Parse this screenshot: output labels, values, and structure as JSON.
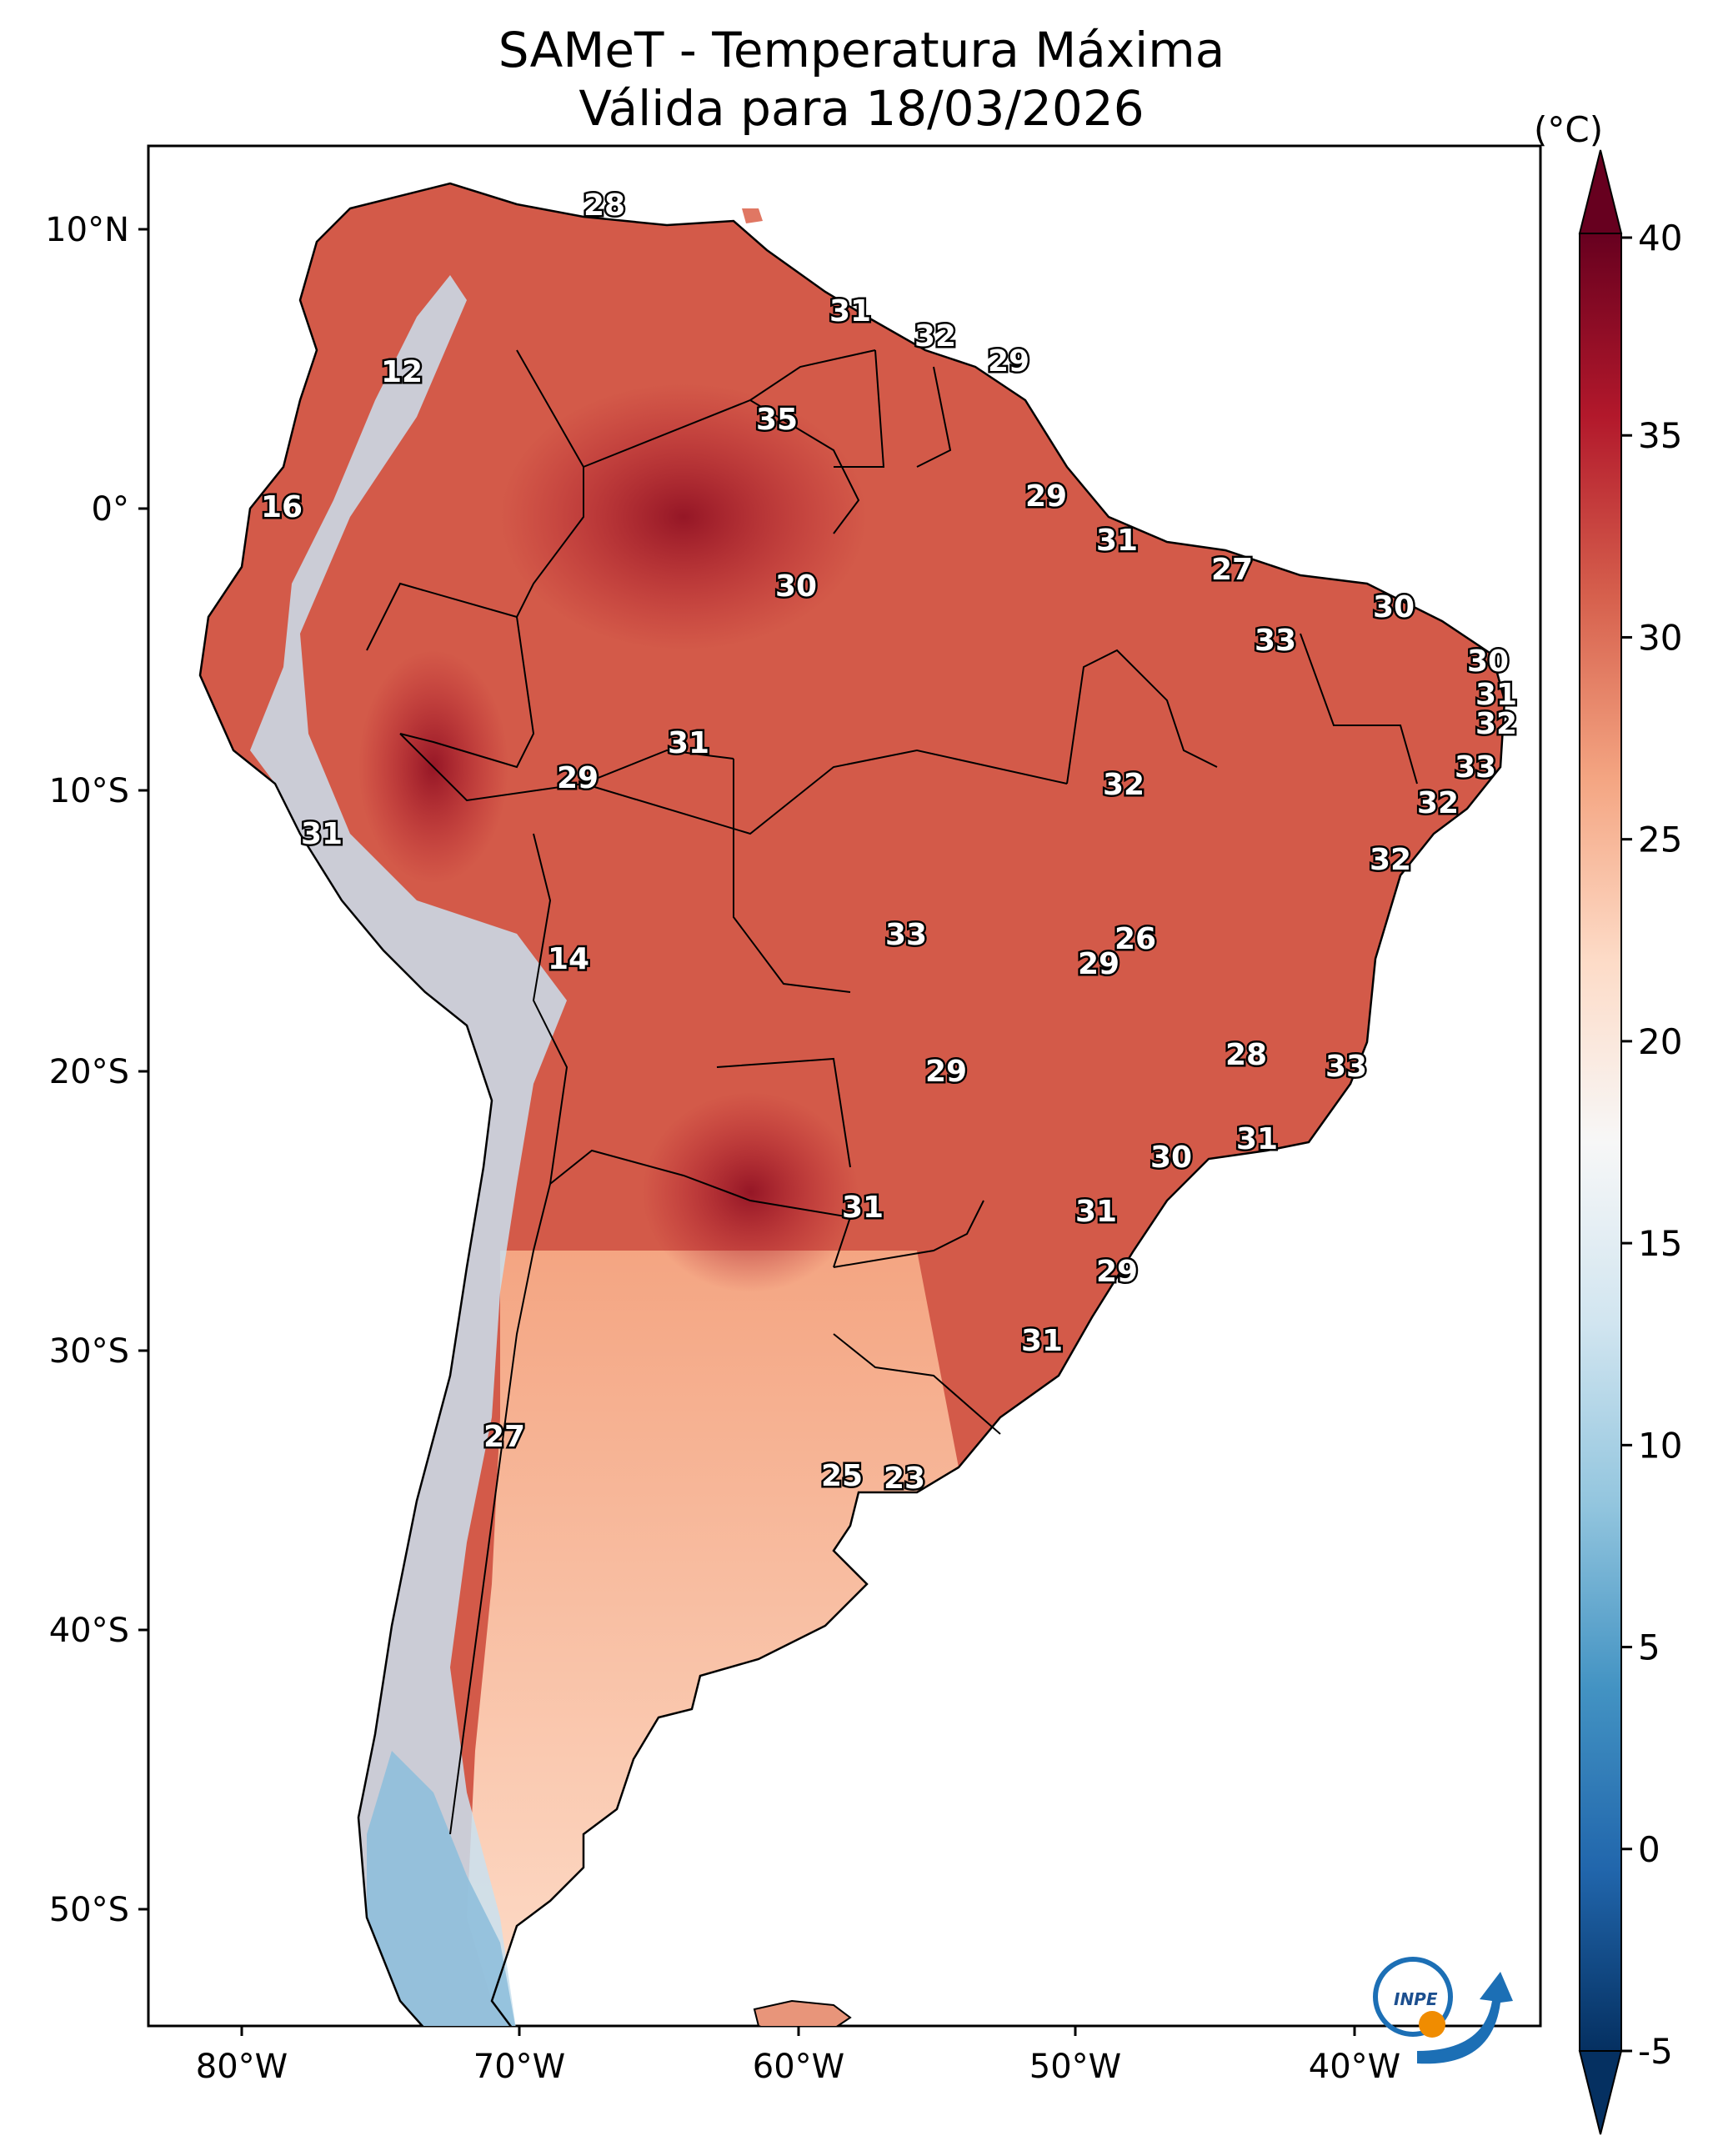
{
  "title": {
    "line1": "SAMeT - Temperatura Máxima",
    "line2": "Válida para 18/03/2026"
  },
  "colorbar": {
    "unit": "(°C)",
    "ticks": [
      "40",
      "35",
      "30",
      "25",
      "20",
      "15",
      "10",
      "5",
      "0",
      "-5"
    ],
    "min": -5,
    "max": 40,
    "colors": [
      "#053061",
      "#2166ac",
      "#4393c3",
      "#92c5de",
      "#d1e5f0",
      "#f7f7f7",
      "#fddbc7",
      "#f4a582",
      "#d6604d",
      "#b2182b",
      "#67001f"
    ]
  },
  "axes": {
    "lon_labels": [
      "80°W",
      "70°W",
      "60°W",
      "50°W",
      "40°W"
    ],
    "lat_labels": [
      "10°N",
      "0°",
      "10°S",
      "20°S",
      "30°S",
      "40°S",
      "50°S"
    ]
  },
  "map_values": [
    {
      "text": "28",
      "value": 28
    },
    {
      "text": "31",
      "value": 31
    },
    {
      "text": "32",
      "value": 32
    },
    {
      "text": "29",
      "value": 29
    },
    {
      "text": "12",
      "value": 12
    },
    {
      "text": "35",
      "value": 35
    },
    {
      "text": "16",
      "value": 16
    },
    {
      "text": "29",
      "value": 29
    },
    {
      "text": "31",
      "value": 31
    },
    {
      "text": "27",
      "value": 27
    },
    {
      "text": "30",
      "value": 30
    },
    {
      "text": "30",
      "value": 30
    },
    {
      "text": "33",
      "value": 33
    },
    {
      "text": "30",
      "value": 30
    },
    {
      "text": "31",
      "value": 31
    },
    {
      "text": "32",
      "value": 32
    },
    {
      "text": "31",
      "value": 31
    },
    {
      "text": "29",
      "value": 29
    },
    {
      "text": "33",
      "value": 33
    },
    {
      "text": "32",
      "value": 32
    },
    {
      "text": "32",
      "value": 32
    },
    {
      "text": "31",
      "value": 31
    },
    {
      "text": "32",
      "value": 32
    },
    {
      "text": "26",
      "value": 26
    },
    {
      "text": "14",
      "value": 14
    },
    {
      "text": "33",
      "value": 33
    },
    {
      "text": "29",
      "value": 29
    },
    {
      "text": "28",
      "value": 28
    },
    {
      "text": "33",
      "value": 33
    },
    {
      "text": "29",
      "value": 29
    },
    {
      "text": "31",
      "value": 31
    },
    {
      "text": "30",
      "value": 30
    },
    {
      "text": "31",
      "value": 31
    },
    {
      "text": "31",
      "value": 31
    },
    {
      "text": "29",
      "value": 29
    },
    {
      "text": "31",
      "value": 31
    },
    {
      "text": "27",
      "value": 27
    },
    {
      "text": "25",
      "value": 25
    },
    {
      "text": "23",
      "value": 23
    }
  ],
  "logo": {
    "text": "INPE"
  }
}
